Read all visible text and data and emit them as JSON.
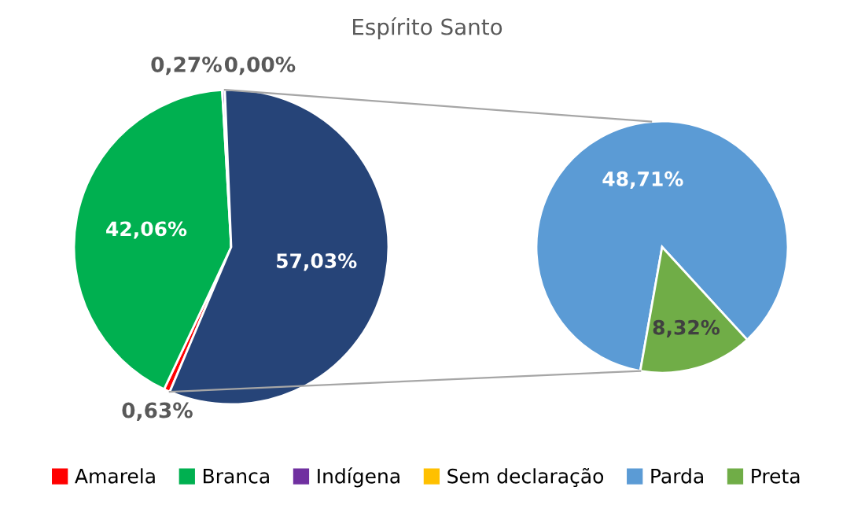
{
  "chart_data": [
    {
      "type": "pie",
      "title": "Espírito Santo",
      "categories": [
        "Amarela",
        "Branca",
        "Indígena",
        "Sem declaração",
        null
      ],
      "values": [
        0.63,
        42.06,
        0.27,
        0.0,
        57.03
      ],
      "colors": [
        "#ff0000",
        "#00b050",
        "#7030a0",
        "#ffc000",
        "#264478"
      ],
      "value_labels": [
        "0,63%",
        "42,06%",
        "0,27%",
        "0,00%",
        "57,03%"
      ],
      "legend": "bottom"
    },
    {
      "type": "pie",
      "categories": [
        "Parda",
        "Preta"
      ],
      "values": [
        48.71,
        8.32
      ],
      "colors": [
        "#5b9bd5",
        "#70ad47"
      ],
      "value_labels": [
        "48,71%",
        "8,32%"
      ],
      "legend": "bottom"
    }
  ]
}
